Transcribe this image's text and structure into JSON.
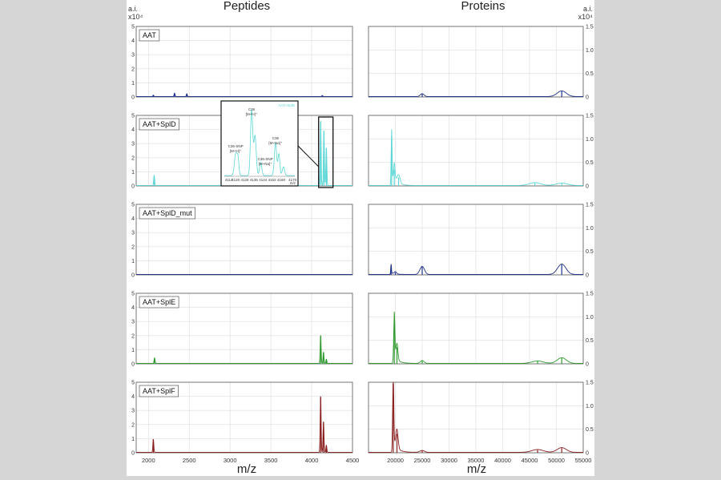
{
  "figure": {
    "left_title": "Peptides",
    "right_title": "Proteins",
    "left_unit_line1": "a.i.",
    "left_unit_line2": "x10⁴",
    "right_unit_line1": "a.i.",
    "right_unit_line2": "x10⁴",
    "left_xlabel": "m/z",
    "right_xlabel": "m/z"
  },
  "chart_data": [
    {
      "type": "line",
      "column": "peptides",
      "xlabel": "m/z",
      "ylabel": "a.i. x10⁴",
      "xlim": [
        1850,
        4500
      ],
      "ylim": [
        0,
        5
      ],
      "xticks": [
        2000,
        2500,
        3000,
        3500,
        4000,
        4500
      ],
      "yticks": [
        0,
        1,
        2,
        3,
        4,
        5
      ],
      "grid": true,
      "panels": [
        {
          "label": "AAT",
          "color": "#1f2f8c",
          "peaks": [
            [
              2060,
              0.1
            ],
            [
              2320,
              0.25
            ],
            [
              2470,
              0.2
            ],
            [
              4130,
              0.08
            ]
          ]
        },
        {
          "label": "AAT+SplD",
          "color": "#5cd6d6",
          "peaks": [
            [
              2070,
              0.75
            ],
            [
              4110,
              4.6
            ],
            [
              4150,
              3.9
            ],
            [
              4180,
              2.7
            ]
          ]
        },
        {
          "label": "AAT+SplD_mut",
          "color": "#1f2f8c",
          "peaks": []
        },
        {
          "label": "AAT+SplE",
          "color": "#2f9a2f",
          "peaks": [
            [
              2075,
              0.4
            ],
            [
              4110,
              2.0
            ],
            [
              4145,
              0.8
            ],
            [
              4180,
              0.3
            ]
          ]
        },
        {
          "label": "AAT+SplF",
          "color": "#8a2020",
          "peaks": [
            [
              2060,
              0.95
            ],
            [
              4110,
              4.0
            ],
            [
              4145,
              2.2
            ],
            [
              4180,
              0.5
            ]
          ]
        }
      ]
    },
    {
      "type": "line",
      "column": "proteins",
      "xlabel": "m/z",
      "ylabel": "a.i. x10⁴",
      "xlim": [
        15000,
        55000
      ],
      "ylim": [
        0,
        1.5
      ],
      "xticks": [
        20000,
        25000,
        30000,
        35000,
        40000,
        45000,
        50000,
        55000
      ],
      "yticks": [
        0,
        0.5,
        1.0,
        1.5
      ],
      "ytick_labels": [
        "0",
        "0.5",
        "1.0",
        "1.5"
      ],
      "grid": true,
      "panels": [
        {
          "label": "AAT",
          "color": "#1f2f8c",
          "peaks": [
            [
              25000,
              0.06,
              500
            ],
            [
              51000,
              0.12,
              1200
            ]
          ]
        },
        {
          "label": "AAT+SplD",
          "color": "#5cd6d6",
          "peaks": [
            [
              19300,
              1.05,
              120
            ],
            [
              19800,
              0.35,
              200
            ],
            [
              20600,
              0.18,
              400
            ],
            [
              46000,
              0.06,
              1500
            ],
            [
              51000,
              0.05,
              1500
            ]
          ]
        },
        {
          "label": "AAT+SplD_mut",
          "color": "#1f2f8c",
          "peaks": [
            [
              19200,
              0.2,
              100
            ],
            [
              20000,
              0.05,
              300
            ],
            [
              25000,
              0.17,
              600
            ],
            [
              51000,
              0.22,
              1100
            ]
          ]
        },
        {
          "label": "AAT+SplE",
          "color": "#2f9a2f",
          "peaks": [
            [
              19800,
              0.95,
              160
            ],
            [
              20300,
              0.35,
              250
            ],
            [
              25000,
              0.06,
              500
            ],
            [
              46500,
              0.05,
              1500
            ],
            [
              51000,
              0.12,
              1200
            ]
          ]
        },
        {
          "label": "AAT+SplF",
          "color": "#8a2020",
          "peaks": [
            [
              19600,
              1.48,
              150
            ],
            [
              20300,
              0.4,
              300
            ],
            [
              25000,
              0.04,
              600
            ],
            [
              46500,
              0.06,
              1500
            ],
            [
              51000,
              0.1,
              1200
            ]
          ]
        }
      ]
    },
    {
      "type": "line",
      "column": "inset",
      "title": "",
      "series_label": "AAT+SplD",
      "xlim": [
        4110,
        4172
      ],
      "xticks": [
        4114,
        4120,
        4128,
        4136,
        4144,
        4152,
        4160,
        4170
      ],
      "x_unit": "m/z",
      "annotations": [
        {
          "line1": "C36",
          "line2": "[M+H]⁺"
        },
        {
          "line1": "C36-SNP",
          "line2": "[M+H]⁺"
        },
        {
          "line1": "C36",
          "line2": "[M+Na]⁺"
        },
        {
          "line1": "C36-SNP",
          "line2": "[M+Na]⁺"
        }
      ]
    }
  ]
}
